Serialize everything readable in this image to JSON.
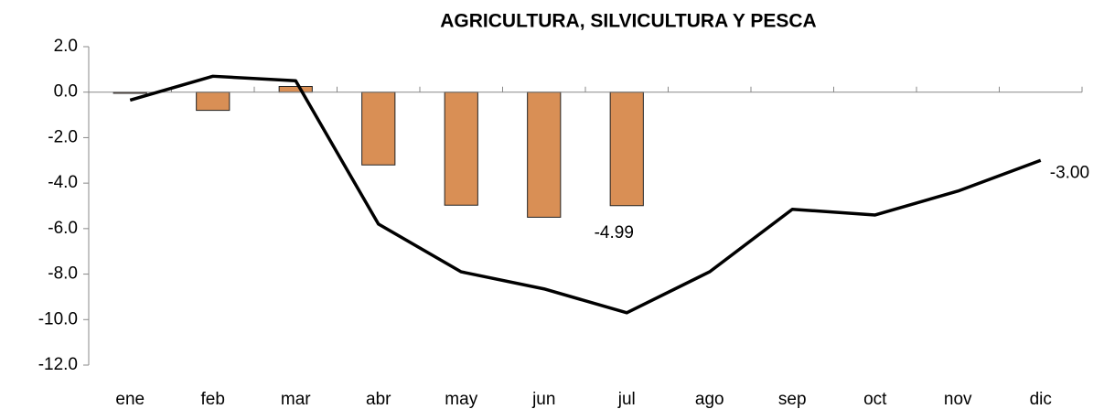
{
  "chart_data": {
    "type": "bar",
    "title": "AGRICULTURA, SILVICULTURA Y PESCA",
    "categories": [
      "ene",
      "feb",
      "mar",
      "abr",
      "may",
      "jun",
      "jul",
      "ago",
      "sep",
      "oct",
      "nov",
      "dic"
    ],
    "series": [
      {
        "type": "bar",
        "color": "#d98f55",
        "values": [
          -0.05,
          -0.8,
          0.25,
          -3.2,
          -4.97,
          -5.5,
          -4.99,
          null,
          null,
          null,
          null,
          null
        ],
        "value_labels": [
          null,
          null,
          null,
          null,
          null,
          null,
          "-4.99",
          null,
          null,
          null,
          null,
          null
        ]
      },
      {
        "type": "line",
        "color": "#000000",
        "values": [
          -0.35,
          0.7,
          0.5,
          -5.8,
          -7.9,
          -8.65,
          -9.7,
          -7.9,
          -5.15,
          -5.4,
          -4.35,
          -3.0
        ],
        "value_labels": [
          null,
          null,
          null,
          null,
          null,
          null,
          null,
          null,
          null,
          null,
          null,
          "-3.00"
        ]
      }
    ],
    "ylim": [
      -12,
      2
    ],
    "yticks": [
      {
        "value": 2,
        "label": "2.0"
      },
      {
        "value": 0,
        "label": "0.0"
      },
      {
        "value": -2,
        "label": "-2.0"
      },
      {
        "value": -4,
        "label": "-4.0"
      },
      {
        "value": -6,
        "label": "-6.0"
      },
      {
        "value": -8,
        "label": "-8.0"
      },
      {
        "value": -10,
        "label": "-10.0"
      },
      {
        "value": -12,
        "label": "-12.0"
      }
    ]
  }
}
